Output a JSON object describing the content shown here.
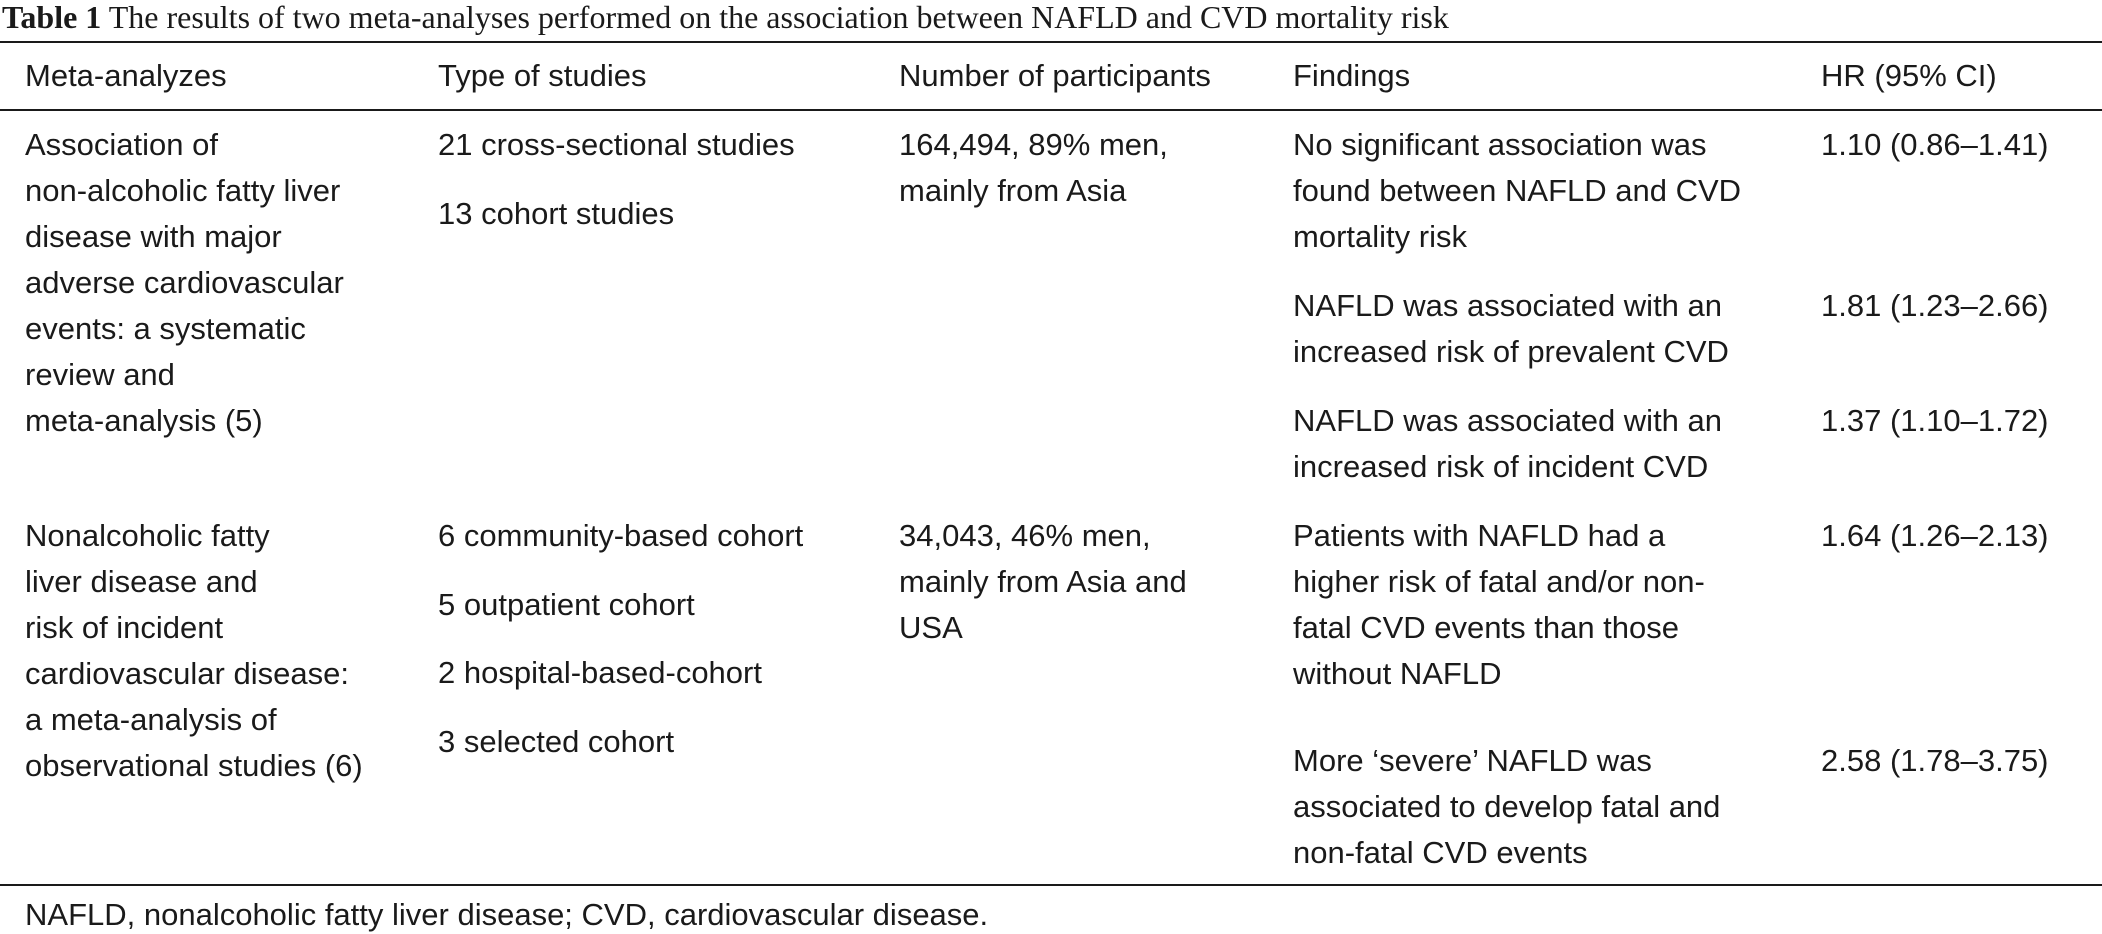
{
  "caption": {
    "label": "Table 1",
    "text": "The results of two meta-analyses performed on the association between NAFLD and CVD mortality risk"
  },
  "headers": {
    "meta": "Meta-analyzes",
    "type": "Type of studies",
    "participants": "Number of participants",
    "findings": "Findings",
    "hr": "HR (95% CI)"
  },
  "rows": [
    {
      "meta_lines": [
        "Association of",
        "non-alcoholic fatty liver",
        "disease with major",
        "adverse cardiovascular",
        "events: a systematic",
        "review and",
        "meta-analysis (5)"
      ],
      "types": [
        "21 cross-sectional studies",
        "13 cohort studies"
      ],
      "participants_lines": [
        "164,494, 89% men,",
        "mainly from Asia"
      ],
      "findings": [
        {
          "lines": [
            "No significant association was",
            "found between NAFLD and CVD",
            "mortality risk"
          ],
          "hr": "1.10 (0.86–1.41)"
        },
        {
          "lines": [
            "NAFLD was associated with an",
            "increased risk of prevalent CVD"
          ],
          "hr": "1.81 (1.23–2.66)"
        },
        {
          "lines": [
            "NAFLD was associated with an",
            "increased risk of incident CVD"
          ],
          "hr": "1.37 (1.10–1.72)"
        }
      ]
    },
    {
      "meta_lines": [
        "Nonalcoholic fatty",
        "liver disease and",
        "risk of incident",
        "cardiovascular disease:",
        "a meta-analysis of",
        "observational studies (6)"
      ],
      "types": [
        "6 community-based cohort",
        "5 outpatient cohort",
        "2 hospital-based-cohort",
        "3 selected cohort"
      ],
      "participants_lines": [
        "34,043, 46% men,",
        "mainly from Asia and",
        "USA"
      ],
      "findings": [
        {
          "lines": [
            "Patients with NAFLD had a",
            "higher risk of fatal and/or non-",
            "fatal CVD events than those",
            "without NAFLD"
          ],
          "hr": "1.64 (1.26–2.13)"
        },
        {
          "lines": [
            "More ‘severe’ NAFLD was",
            "associated to develop fatal and",
            "non-fatal CVD events"
          ],
          "hr": "2.58 (1.78–3.75)"
        }
      ]
    }
  ],
  "footnote": "NAFLD, nonalcoholic fatty liver disease; CVD, cardiovascular disease."
}
